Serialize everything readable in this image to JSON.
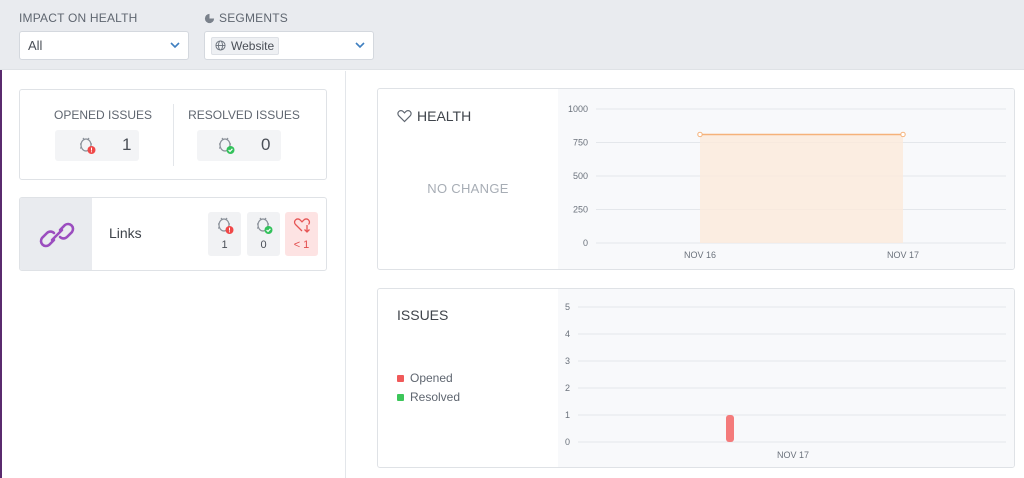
{
  "filters": {
    "impact": {
      "label": "IMPACT ON HEALTH",
      "value": "All"
    },
    "segments": {
      "label": "SEGMENTS",
      "value": "Website"
    }
  },
  "summary": {
    "opened_label": "OPENED ISSUES",
    "opened_count": "1",
    "resolved_label": "RESOLVED ISSUES",
    "resolved_count": "0"
  },
  "segment_row": {
    "name": "Links",
    "opened": "1",
    "resolved": "0",
    "health_impact": "< 1"
  },
  "health_panel": {
    "title": "HEALTH",
    "status": "NO CHANGE"
  },
  "issues_panel": {
    "title": "ISSUES",
    "legend": [
      {
        "label": "Opened",
        "color": "#f05a5a"
      },
      {
        "label": "Resolved",
        "color": "#3cc65a"
      }
    ]
  },
  "colors": {
    "accent_purple": "#9b4dbf",
    "health_line": "#f5b27a",
    "health_fill": "#fbeadb",
    "opened_bar": "#f47b7b"
  },
  "chart_data": [
    {
      "type": "area",
      "x": [
        "NOV 16",
        "NOV 17"
      ],
      "series": [
        {
          "values": [
            810,
            810
          ]
        }
      ],
      "ylim": [
        0,
        1000
      ],
      "yticks": [
        "1000",
        "750",
        "500",
        "250",
        "0"
      ]
    },
    {
      "type": "bar",
      "categories": [
        "NOV 17"
      ],
      "series": [
        {
          "name": "Opened",
          "values": [
            1
          ]
        },
        {
          "name": "Resolved",
          "values": [
            0
          ]
        }
      ],
      "ylim": [
        0,
        5
      ],
      "yticks": [
        "5",
        "4",
        "3",
        "2",
        "1",
        "0"
      ]
    }
  ]
}
